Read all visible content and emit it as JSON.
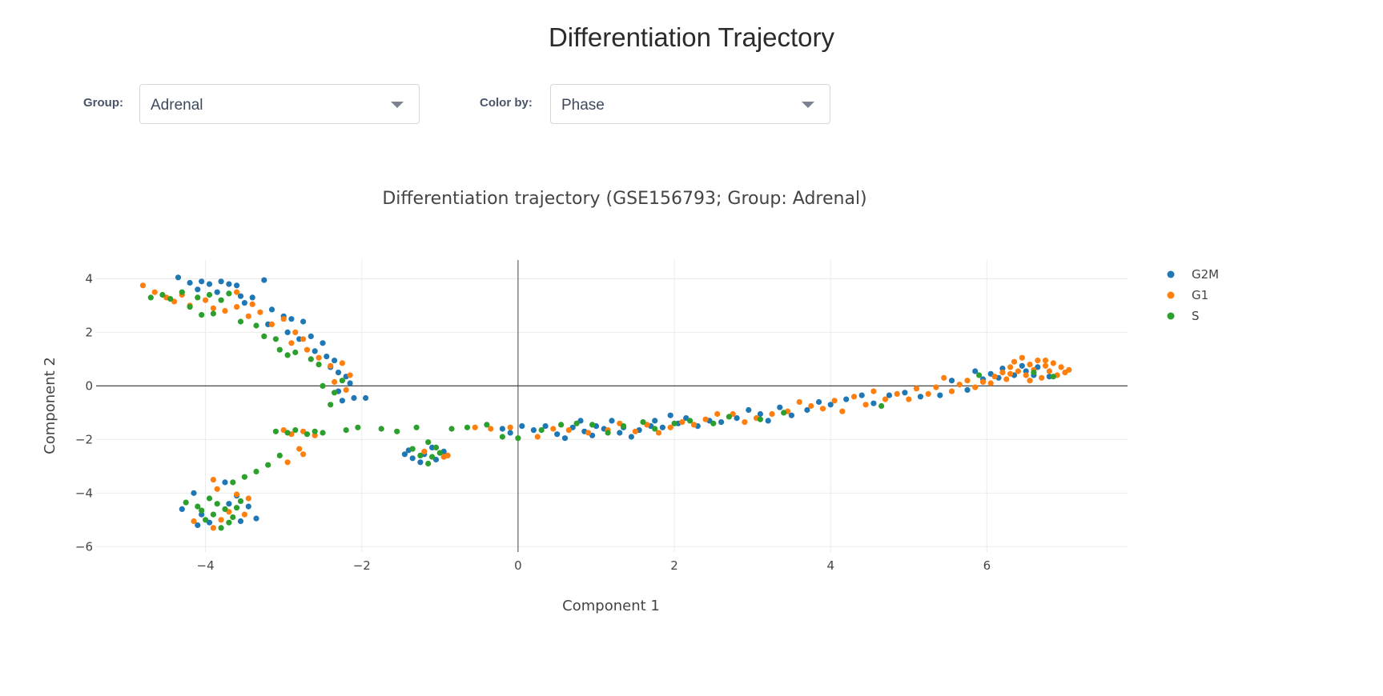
{
  "page_title": "Differentiation Trajectory",
  "controls": {
    "group_label": "Group:",
    "group_value": "Adrenal",
    "color_label": "Color by:",
    "color_value": "Phase"
  },
  "chart_data": {
    "type": "scatter",
    "title": "Differentiation trajectory (GSE156793; Group: Adrenal)",
    "xlabel": "Component 1",
    "ylabel": "Component 2",
    "xlim": [
      -5.4,
      7.8
    ],
    "ylim": [
      -6.2,
      4.7
    ],
    "xticks": [
      -4,
      -2,
      0,
      2,
      4,
      6
    ],
    "yticks": [
      4,
      2,
      0,
      -2,
      -4,
      -6
    ],
    "xtick_labels": [
      "−4",
      "−2",
      "0",
      "2",
      "4",
      "6"
    ],
    "ytick_labels": [
      "4",
      "2",
      "0",
      "−2",
      "−4",
      "−6"
    ],
    "grid": true,
    "zero_lines": true,
    "legend_position": "top-right",
    "series": [
      {
        "name": "G2M",
        "color": "#1f77b4",
        "points": [
          [
            -4.35,
            4.05
          ],
          [
            -4.2,
            3.85
          ],
          [
            -4.05,
            3.9
          ],
          [
            -3.95,
            3.8
          ],
          [
            -3.8,
            3.9
          ],
          [
            -3.7,
            3.8
          ],
          [
            -3.6,
            3.75
          ],
          [
            -4.1,
            3.6
          ],
          [
            -3.85,
            3.5
          ],
          [
            -3.55,
            3.35
          ],
          [
            -3.5,
            3.1
          ],
          [
            -3.4,
            3.3
          ],
          [
            -3.25,
            3.95
          ],
          [
            -3.15,
            2.85
          ],
          [
            -3.0,
            2.6
          ],
          [
            -2.9,
            2.5
          ],
          [
            -2.75,
            2.4
          ],
          [
            -3.2,
            2.3
          ],
          [
            -2.95,
            2.0
          ],
          [
            -2.8,
            1.75
          ],
          [
            -2.65,
            1.85
          ],
          [
            -2.5,
            1.6
          ],
          [
            -2.6,
            1.3
          ],
          [
            -2.45,
            1.1
          ],
          [
            -2.35,
            0.95
          ],
          [
            -2.4,
            0.7
          ],
          [
            -2.3,
            0.5
          ],
          [
            -2.2,
            0.35
          ],
          [
            -2.15,
            0.1
          ],
          [
            -2.3,
            -0.2
          ],
          [
            -2.1,
            -0.45
          ],
          [
            -2.25,
            -0.55
          ],
          [
            -1.95,
            -0.45
          ],
          [
            -4.15,
            -4.0
          ],
          [
            -4.05,
            -4.8
          ],
          [
            -3.95,
            -5.1
          ],
          [
            -4.1,
            -5.2
          ],
          [
            -3.75,
            -3.6
          ],
          [
            -3.6,
            -4.1
          ],
          [
            -3.45,
            -4.5
          ],
          [
            -3.35,
            -4.95
          ],
          [
            -3.55,
            -5.05
          ],
          [
            -4.3,
            -4.6
          ],
          [
            -3.7,
            -4.4
          ],
          [
            -1.4,
            -2.4
          ],
          [
            -1.35,
            -2.7
          ],
          [
            -1.2,
            -2.55
          ],
          [
            -1.05,
            -2.75
          ],
          [
            -1.25,
            -2.85
          ],
          [
            -0.95,
            -2.45
          ],
          [
            -1.1,
            -2.3
          ],
          [
            -1.45,
            -2.55
          ],
          [
            -0.2,
            -1.6
          ],
          [
            -0.1,
            -1.75
          ],
          [
            0.05,
            -1.5
          ],
          [
            0.2,
            -1.65
          ],
          [
            0.35,
            -1.5
          ],
          [
            0.5,
            -1.8
          ],
          [
            0.6,
            -1.95
          ],
          [
            0.7,
            -1.55
          ],
          [
            0.8,
            -1.3
          ],
          [
            0.85,
            -1.7
          ],
          [
            0.95,
            -1.85
          ],
          [
            1.0,
            -1.5
          ],
          [
            1.1,
            -1.6
          ],
          [
            1.2,
            -1.3
          ],
          [
            1.3,
            -1.75
          ],
          [
            1.35,
            -1.55
          ],
          [
            1.45,
            -1.9
          ],
          [
            1.55,
            -1.65
          ],
          [
            1.7,
            -1.5
          ],
          [
            1.75,
            -1.3
          ],
          [
            1.85,
            -1.55
          ],
          [
            1.95,
            -1.1
          ],
          [
            2.05,
            -1.4
          ],
          [
            2.15,
            -1.2
          ],
          [
            2.3,
            -1.5
          ],
          [
            2.45,
            -1.3
          ],
          [
            2.6,
            -1.35
          ],
          [
            2.8,
            -1.2
          ],
          [
            2.95,
            -0.9
          ],
          [
            3.1,
            -1.05
          ],
          [
            3.2,
            -1.3
          ],
          [
            3.35,
            -0.8
          ],
          [
            3.5,
            -1.1
          ],
          [
            3.7,
            -0.9
          ],
          [
            3.85,
            -0.6
          ],
          [
            4.0,
            -0.7
          ],
          [
            4.2,
            -0.5
          ],
          [
            4.4,
            -0.35
          ],
          [
            4.55,
            -0.65
          ],
          [
            4.75,
            -0.35
          ],
          [
            4.95,
            -0.25
          ],
          [
            5.15,
            -0.4
          ],
          [
            5.4,
            -0.35
          ],
          [
            5.55,
            0.2
          ],
          [
            5.75,
            -0.15
          ],
          [
            5.95,
            0.25
          ],
          [
            6.05,
            0.45
          ],
          [
            6.2,
            0.65
          ],
          [
            6.35,
            0.4
          ],
          [
            6.5,
            0.55
          ],
          [
            6.65,
            0.7
          ],
          [
            6.8,
            0.35
          ],
          [
            5.85,
            0.55
          ],
          [
            6.15,
            0.3
          ],
          [
            6.45,
            0.75
          ],
          [
            6.6,
            0.4
          ]
        ]
      },
      {
        "name": "G1",
        "color": "#ff7f0e",
        "points": [
          [
            -4.8,
            3.75
          ],
          [
            -4.65,
            3.5
          ],
          [
            -4.5,
            3.3
          ],
          [
            -4.4,
            3.15
          ],
          [
            -4.3,
            3.4
          ],
          [
            -4.2,
            3.0
          ],
          [
            -4.0,
            3.2
          ],
          [
            -3.9,
            2.9
          ],
          [
            -3.75,
            2.8
          ],
          [
            -3.6,
            2.95
          ],
          [
            -3.45,
            2.6
          ],
          [
            -3.3,
            2.75
          ],
          [
            -3.4,
            3.05
          ],
          [
            -3.6,
            3.5
          ],
          [
            -3.15,
            2.3
          ],
          [
            -3.0,
            2.5
          ],
          [
            -2.85,
            2.0
          ],
          [
            -2.75,
            1.75
          ],
          [
            -2.9,
            1.6
          ],
          [
            -2.7,
            1.35
          ],
          [
            -2.55,
            1.05
          ],
          [
            -2.4,
            0.75
          ],
          [
            -2.25,
            0.85
          ],
          [
            -2.15,
            0.4
          ],
          [
            -2.35,
            0.15
          ],
          [
            -2.2,
            -0.15
          ],
          [
            -3.0,
            -1.65
          ],
          [
            -2.9,
            -1.8
          ],
          [
            -2.75,
            -1.7
          ],
          [
            -2.6,
            -1.85
          ],
          [
            -2.8,
            -2.35
          ],
          [
            -2.75,
            -2.55
          ],
          [
            -2.95,
            -2.85
          ],
          [
            -3.9,
            -3.5
          ],
          [
            -3.85,
            -3.85
          ],
          [
            -3.6,
            -4.05
          ],
          [
            -3.45,
            -4.2
          ],
          [
            -3.7,
            -4.7
          ],
          [
            -3.9,
            -5.3
          ],
          [
            -4.15,
            -5.05
          ],
          [
            -3.8,
            -5.0
          ],
          [
            -3.5,
            -4.8
          ],
          [
            -0.9,
            -2.6
          ],
          [
            -0.95,
            -2.65
          ],
          [
            -1.2,
            -2.45
          ],
          [
            -0.55,
            -1.55
          ],
          [
            -0.35,
            -1.6
          ],
          [
            -0.1,
            -1.55
          ],
          [
            0.25,
            -1.9
          ],
          [
            0.45,
            -1.6
          ],
          [
            0.65,
            -1.65
          ],
          [
            0.9,
            -1.75
          ],
          [
            1.15,
            -1.65
          ],
          [
            1.3,
            -1.4
          ],
          [
            1.5,
            -1.7
          ],
          [
            1.65,
            -1.45
          ],
          [
            1.8,
            -1.75
          ],
          [
            1.95,
            -1.55
          ],
          [
            2.1,
            -1.35
          ],
          [
            2.25,
            -1.45
          ],
          [
            2.4,
            -1.25
          ],
          [
            2.55,
            -1.05
          ],
          [
            2.75,
            -1.05
          ],
          [
            2.9,
            -1.35
          ],
          [
            3.05,
            -1.2
          ],
          [
            3.25,
            -1.05
          ],
          [
            3.45,
            -0.95
          ],
          [
            3.6,
            -0.6
          ],
          [
            3.75,
            -0.75
          ],
          [
            3.9,
            -0.85
          ],
          [
            4.05,
            -0.55
          ],
          [
            4.15,
            -0.95
          ],
          [
            4.3,
            -0.4
          ],
          [
            4.45,
            -0.7
          ],
          [
            4.55,
            -0.2
          ],
          [
            4.7,
            -0.5
          ],
          [
            4.85,
            -0.3
          ],
          [
            5.0,
            -0.5
          ],
          [
            5.1,
            -0.1
          ],
          [
            5.25,
            -0.3
          ],
          [
            5.35,
            -0.05
          ],
          [
            5.45,
            0.3
          ],
          [
            5.55,
            -0.2
          ],
          [
            5.65,
            0.05
          ],
          [
            5.75,
            0.2
          ],
          [
            5.85,
            -0.05
          ],
          [
            5.95,
            0.15
          ],
          [
            6.05,
            0.1
          ],
          [
            6.1,
            0.35
          ],
          [
            6.2,
            0.5
          ],
          [
            6.25,
            0.25
          ],
          [
            6.3,
            0.7
          ],
          [
            6.35,
            0.9
          ],
          [
            6.4,
            0.55
          ],
          [
            6.45,
            1.05
          ],
          [
            6.5,
            0.4
          ],
          [
            6.55,
            0.8
          ],
          [
            6.6,
            0.6
          ],
          [
            6.65,
            0.95
          ],
          [
            6.7,
            0.3
          ],
          [
            6.75,
            0.75
          ],
          [
            6.8,
            0.55
          ],
          [
            6.85,
            0.85
          ],
          [
            6.9,
            0.4
          ],
          [
            6.95,
            0.7
          ],
          [
            7.0,
            0.5
          ],
          [
            7.05,
            0.6
          ],
          [
            6.55,
            0.2
          ],
          [
            6.75,
            0.95
          ],
          [
            6.3,
            0.45
          ]
        ]
      },
      {
        "name": "S",
        "color": "#2ca02c",
        "points": [
          [
            -4.7,
            3.3
          ],
          [
            -4.55,
            3.4
          ],
          [
            -4.45,
            3.25
          ],
          [
            -4.3,
            3.5
          ],
          [
            -4.1,
            3.3
          ],
          [
            -3.95,
            3.4
          ],
          [
            -3.8,
            3.2
          ],
          [
            -3.7,
            3.45
          ],
          [
            -4.2,
            2.95
          ],
          [
            -4.05,
            2.65
          ],
          [
            -3.9,
            2.7
          ],
          [
            -3.55,
            2.4
          ],
          [
            -3.35,
            2.25
          ],
          [
            -3.25,
            1.85
          ],
          [
            -3.1,
            1.75
          ],
          [
            -3.05,
            1.35
          ],
          [
            -2.95,
            1.15
          ],
          [
            -2.85,
            1.25
          ],
          [
            -2.65,
            1.0
          ],
          [
            -2.55,
            0.8
          ],
          [
            -2.5,
            0.0
          ],
          [
            -2.35,
            -0.25
          ],
          [
            -2.4,
            -0.7
          ],
          [
            -2.25,
            0.2
          ],
          [
            -3.1,
            -1.7
          ],
          [
            -2.95,
            -1.75
          ],
          [
            -2.85,
            -1.65
          ],
          [
            -2.7,
            -1.8
          ],
          [
            -2.6,
            -1.7
          ],
          [
            -2.5,
            -1.75
          ],
          [
            -3.05,
            -2.6
          ],
          [
            -3.2,
            -2.95
          ],
          [
            -3.35,
            -3.2
          ],
          [
            -3.5,
            -3.4
          ],
          [
            -3.65,
            -3.6
          ],
          [
            -4.25,
            -4.35
          ],
          [
            -4.1,
            -4.5
          ],
          [
            -3.95,
            -4.2
          ],
          [
            -3.85,
            -4.4
          ],
          [
            -3.75,
            -4.6
          ],
          [
            -3.9,
            -4.8
          ],
          [
            -4.0,
            -5.0
          ],
          [
            -3.7,
            -5.1
          ],
          [
            -3.55,
            -4.3
          ],
          [
            -3.65,
            -4.9
          ],
          [
            -3.8,
            -5.3
          ],
          [
            -4.05,
            -4.65
          ],
          [
            -3.6,
            -4.55
          ],
          [
            -2.2,
            -1.65
          ],
          [
            -2.05,
            -1.55
          ],
          [
            -1.75,
            -1.6
          ],
          [
            -1.55,
            -1.7
          ],
          [
            -1.3,
            -1.55
          ],
          [
            -1.15,
            -2.1
          ],
          [
            -1.05,
            -2.3
          ],
          [
            -1.35,
            -2.35
          ],
          [
            -1.25,
            -2.6
          ],
          [
            -1.1,
            -2.65
          ],
          [
            -1.15,
            -2.9
          ],
          [
            -1.0,
            -2.5
          ],
          [
            -0.85,
            -1.6
          ],
          [
            -0.65,
            -1.55
          ],
          [
            -0.4,
            -1.45
          ],
          [
            -0.2,
            -1.9
          ],
          [
            0.0,
            -1.95
          ],
          [
            0.3,
            -1.65
          ],
          [
            0.55,
            -1.45
          ],
          [
            0.75,
            -1.4
          ],
          [
            0.95,
            -1.45
          ],
          [
            1.15,
            -1.75
          ],
          [
            1.35,
            -1.5
          ],
          [
            1.6,
            -1.35
          ],
          [
            1.75,
            -1.6
          ],
          [
            2.0,
            -1.4
          ],
          [
            2.2,
            -1.3
          ],
          [
            2.5,
            -1.4
          ],
          [
            2.7,
            -1.15
          ],
          [
            3.1,
            -1.25
          ],
          [
            3.4,
            -1.0
          ],
          [
            4.65,
            -0.75
          ],
          [
            5.9,
            0.4
          ],
          [
            6.6,
            0.5
          ],
          [
            6.85,
            0.35
          ]
        ]
      }
    ]
  }
}
